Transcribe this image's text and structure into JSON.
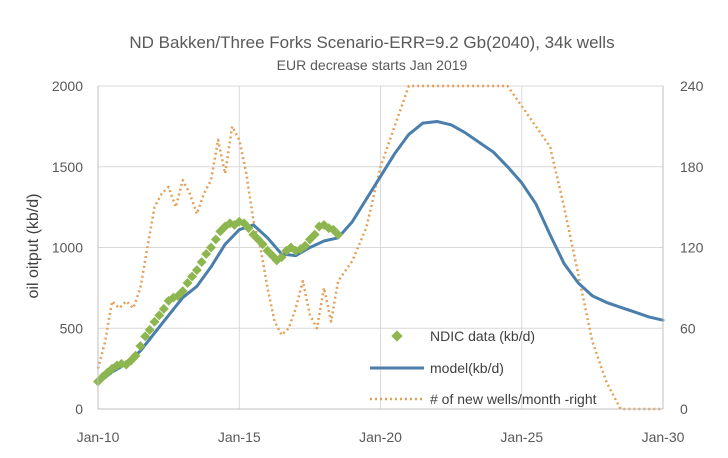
{
  "chart_data": {
    "type": "line",
    "title": "ND Bakken/Three Forks Scenario-ERR=9.2 Gb(2040), 34k wells",
    "subtitle": "EUR decrease starts Jan 2019",
    "ylabel": "oil oitput (kb/d)",
    "ylim": [
      0,
      2000
    ],
    "y2lim": [
      0,
      240
    ],
    "xlim": [
      2010,
      2030
    ],
    "x_ticks": [
      "Jan-10",
      "Jan-15",
      "Jan-20",
      "Jan-25",
      "Jan-30"
    ],
    "x_tick_values": [
      2010,
      2015,
      2020,
      2025,
      2030
    ],
    "y_ticks": [
      "0",
      "500",
      "1000",
      "1500",
      "2000"
    ],
    "y_tick_values": [
      0,
      500,
      1000,
      1500,
      2000
    ],
    "y2_ticks": [
      "0",
      "60",
      "120",
      "180",
      "240"
    ],
    "y2_tick_values": [
      0,
      60,
      120,
      180,
      240
    ],
    "grid": true,
    "legend_position": "bottom-center",
    "series": [
      {
        "name": "NDIC  data (kb/d)",
        "axis": "left",
        "style": "markers",
        "color": "#8db64f",
        "x": [
          2010.0,
          2010.17,
          2010.33,
          2010.5,
          2010.67,
          2010.83,
          2011.0,
          2011.17,
          2011.33,
          2011.5,
          2011.67,
          2011.83,
          2012.0,
          2012.17,
          2012.33,
          2012.5,
          2012.67,
          2012.83,
          2013.0,
          2013.17,
          2013.33,
          2013.5,
          2013.67,
          2013.83,
          2014.0,
          2014.17,
          2014.33,
          2014.5,
          2014.67,
          2014.83,
          2015.0,
          2015.17,
          2015.33,
          2015.5,
          2015.67,
          2015.83,
          2016.0,
          2016.17,
          2016.33,
          2016.5,
          2016.67,
          2016.83,
          2017.0,
          2017.17,
          2017.33,
          2017.5,
          2017.67,
          2017.83,
          2018.0,
          2018.17,
          2018.33,
          2018.5
        ],
        "y": [
          170,
          200,
          225,
          250,
          270,
          280,
          275,
          300,
          330,
          390,
          450,
          490,
          540,
          580,
          620,
          670,
          690,
          700,
          730,
          780,
          820,
          860,
          910,
          960,
          1000,
          1050,
          1100,
          1130,
          1150,
          1140,
          1160,
          1150,
          1120,
          1080,
          1050,
          1020,
          980,
          950,
          920,
          940,
          980,
          1000,
          980,
          990,
          1010,
          1050,
          1080,
          1130,
          1140,
          1120,
          1110,
          1080
        ]
      },
      {
        "name": "model(kb/d)",
        "axis": "left",
        "style": "line",
        "color": "#4a7eab",
        "x": [
          2010.0,
          2010.5,
          2011.0,
          2011.5,
          2012.0,
          2012.5,
          2013.0,
          2013.5,
          2014.0,
          2014.5,
          2015.0,
          2015.5,
          2016.0,
          2016.5,
          2017.0,
          2017.5,
          2018.0,
          2018.5,
          2019.0,
          2019.5,
          2020.0,
          2020.5,
          2021.0,
          2021.5,
          2022.0,
          2022.5,
          2023.0,
          2023.5,
          2024.0,
          2024.5,
          2025.0,
          2025.5,
          2026.0,
          2026.5,
          2027.0,
          2027.5,
          2028.0,
          2028.5,
          2029.0,
          2029.5,
          2030.0
        ],
        "y": [
          160,
          230,
          280,
          360,
          470,
          580,
          690,
          760,
          880,
          1020,
          1110,
          1140,
          1060,
          960,
          950,
          1000,
          1040,
          1060,
          1160,
          1300,
          1440,
          1580,
          1700,
          1770,
          1780,
          1760,
          1710,
          1650,
          1590,
          1500,
          1400,
          1270,
          1080,
          900,
          780,
          700,
          660,
          630,
          600,
          570,
          550
        ]
      },
      {
        "name": "# of new wells/month -right",
        "axis": "right",
        "style": "dotted",
        "color": "#e3a057",
        "x": [
          2010.0,
          2010.25,
          2010.5,
          2010.75,
          2011.0,
          2011.25,
          2011.5,
          2011.75,
          2012.0,
          2012.25,
          2012.5,
          2012.75,
          2013.0,
          2013.25,
          2013.5,
          2013.75,
          2014.0,
          2014.25,
          2014.5,
          2014.75,
          2015.0,
          2015.25,
          2015.5,
          2015.75,
          2016.0,
          2016.25,
          2016.5,
          2016.75,
          2017.0,
          2017.25,
          2017.5,
          2017.75,
          2018.0,
          2018.25,
          2018.5,
          2019.0,
          2019.5,
          2020.0,
          2020.5,
          2021.0,
          2021.5,
          2022.0,
          2022.5,
          2023.0,
          2023.5,
          2024.0,
          2024.5,
          2025.0,
          2025.5,
          2026.0,
          2026.5,
          2027.0,
          2027.5,
          2028.0,
          2028.5,
          2029.0,
          2029.5,
          2030.0
        ],
        "y": [
          30,
          50,
          80,
          75,
          80,
          75,
          90,
          120,
          150,
          160,
          165,
          150,
          170,
          160,
          145,
          160,
          170,
          200,
          175,
          210,
          200,
          175,
          140,
          120,
          90,
          65,
          55,
          60,
          75,
          95,
          70,
          60,
          90,
          65,
          95,
          110,
          135,
          180,
          210,
          240,
          240,
          240,
          240,
          240,
          240,
          240,
          240,
          225,
          210,
          195,
          150,
          100,
          50,
          20,
          0,
          0,
          0,
          0
        ]
      }
    ]
  }
}
